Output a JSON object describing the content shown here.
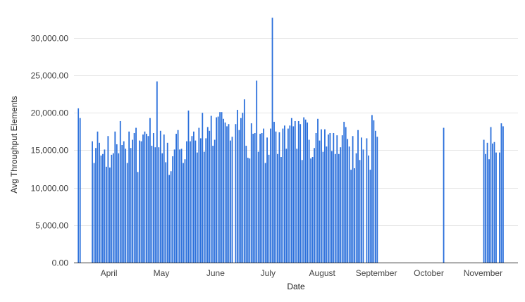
{
  "chart_data": {
    "type": "bar",
    "xlabel": "Date",
    "ylabel": "Avg Throughput Elements",
    "ylim": [
      0,
      33000
    ],
    "yticks": [
      "0.00",
      "5,000.00",
      "10,000.00",
      "15,000.00",
      "20,000.00",
      "25,000.00",
      "30,000.00"
    ],
    "ytick_values": [
      0,
      5000,
      10000,
      15000,
      20000,
      25000,
      30000
    ],
    "xlim": [
      "2023-03-21",
      "2023-11-30"
    ],
    "xticks": [
      {
        "label": "April",
        "date": "2023-04-10"
      },
      {
        "label": "May",
        "date": "2023-05-10"
      },
      {
        "label": "June",
        "date": "2023-06-10"
      },
      {
        "label": "July",
        "date": "2023-07-10"
      },
      {
        "label": "August",
        "date": "2023-08-10"
      },
      {
        "label": "September",
        "date": "2023-09-10"
      },
      {
        "label": "October",
        "date": "2023-10-10"
      },
      {
        "label": "November",
        "date": "2023-11-10"
      }
    ],
    "grid": true,
    "bar_color": "#2a6fdb",
    "series": [
      {
        "start_date": "2023-03-23",
        "values": [
          20600,
          19300,
          null,
          null,
          null,
          null,
          null,
          null,
          16200,
          13300,
          15300,
          17500,
          16000,
          14300,
          14500,
          15100,
          12800,
          16900,
          12700,
          14400,
          14600,
          17500,
          15800,
          14600,
          18900,
          15700,
          16200,
          15200,
          13300,
          17500,
          15300,
          16400,
          17300,
          18000,
          12100,
          16300,
          16200,
          17100,
          17500,
          17200,
          16900,
          19300,
          15600,
          17300,
          15400,
          24200,
          15400,
          17600,
          14600,
          17100,
          13400,
          16000,
          11700,
          12200,
          14200,
          15100,
          17200,
          17700,
          15100,
          15200,
          13300,
          13800,
          16200,
          20300,
          16200,
          16900,
          17500,
          16300,
          14700,
          18000,
          16600,
          20000,
          14800,
          16600,
          18100,
          17600,
          19600,
          15600,
          16400,
          19400,
          19500,
          20100,
          20100,
          19200,
          18700,
          18200,
          18500,
          16300,
          16800,
          null,
          18500,
          20400,
          17700,
          19300,
          20000,
          21800,
          15600,
          14000,
          13900,
          18600,
          17200,
          17300,
          24300,
          14800,
          17200,
          17300,
          17900,
          13300,
          16700,
          14400,
          17900,
          32700,
          18800,
          17500,
          14500,
          17400,
          14100,
          17900,
          18300,
          15200,
          17900,
          18300,
          19300,
          18200,
          18900,
          15200,
          18900,
          18500,
          13700,
          19400,
          19100,
          18700,
          16400,
          13900,
          14100,
          15300,
          17300,
          19200,
          16300,
          17800,
          14800,
          17800,
          15500,
          17100,
          17300,
          14900,
          17300,
          14500,
          17000,
          14500,
          15400,
          17000,
          18800,
          18100,
          16500,
          15500,
          12400,
          16900,
          12600,
          14600,
          17700,
          13700,
          16700,
          15100,
          null,
          16600,
          14300,
          12400,
          19700,
          19000,
          17600,
          16800,
          null,
          null,
          null,
          null,
          null,
          null,
          null,
          null,
          null,
          null,
          null,
          null,
          null,
          null,
          null,
          null,
          null,
          null,
          null,
          null,
          null,
          null,
          null,
          null,
          null,
          null,
          null,
          null,
          null,
          null,
          null,
          null,
          null,
          null,
          null,
          null,
          null,
          18000,
          null,
          null,
          null,
          null,
          null,
          null,
          null,
          null,
          null,
          null,
          null,
          null,
          null,
          null,
          null,
          null,
          null,
          null,
          null,
          null,
          null,
          null,
          16400,
          14500,
          16000,
          13800,
          18100,
          15900,
          16100,
          14700,
          null,
          14700,
          18600,
          18200
        ]
      }
    ]
  }
}
